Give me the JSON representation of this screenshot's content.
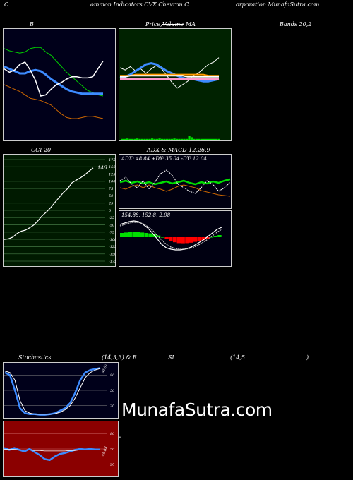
{
  "header": {
    "seg1": "C",
    "seg2": "ommon  Indicators CVX  Chevron  C",
    "seg3": "orporation  MunafaSutra.com"
  },
  "titles": {
    "bollinger": "B",
    "price": "Price,",
    "volume": "Volume",
    "ma": "MA",
    "bands": "Bands 20,2",
    "cci": "CCI 20",
    "adx_macd": "ADX  & MACD 12,26,9",
    "stoch": "Stochastics",
    "stoch_params": "(14,3,3) & R",
    "rsi": "SI",
    "rsi_params": "(14,5",
    "rsi_close": ")"
  },
  "watermark": "MunafaSutra.com",
  "colors": {
    "bollinger_bg": "#00001a",
    "price_bg": "#002200",
    "cci_bg": "#001a00",
    "adx_bg": "#000011",
    "stoch_bg": "#00001a",
    "rsi_bg": "#8b0000",
    "blue": "#3d8bff",
    "green": "#00dd00",
    "orange": "#cc6600",
    "red": "#ff0000",
    "grid": "#3a6a3a"
  },
  "chart_data": [
    {
      "id": "bollinger",
      "type": "line",
      "series": [
        {
          "role": "upper",
          "color": "#00cc00",
          "values": [
            82,
            80,
            79,
            78,
            79,
            82,
            83,
            83,
            79,
            76,
            71,
            66,
            61,
            57,
            53,
            49,
            45,
            43,
            41,
            40
          ]
        },
        {
          "role": "middle",
          "color": "#3d8bff",
          "values": [
            66,
            64,
            62,
            60,
            60,
            62,
            63,
            62,
            59,
            55,
            52,
            49,
            46,
            44,
            43,
            42,
            42,
            42,
            42,
            42
          ]
        },
        {
          "role": "lower",
          "color": "#cc6600",
          "values": [
            50,
            48,
            46,
            44,
            41,
            38,
            37,
            36,
            34,
            32,
            28,
            24,
            21,
            20,
            20,
            21,
            22,
            22,
            21,
            20
          ]
        },
        {
          "role": "price",
          "color": "#ffffff",
          "values": [
            64,
            61,
            63,
            68,
            70,
            63,
            54,
            40,
            41,
            46,
            50,
            52,
            55,
            57,
            57,
            56,
            56,
            57,
            64,
            71
          ]
        }
      ]
    },
    {
      "id": "price_volume_ma",
      "type": "line",
      "series": [
        {
          "role": "price",
          "color": "#ffffff",
          "values": [
            65,
            63,
            66,
            62,
            64,
            60,
            64,
            67,
            64,
            58,
            52,
            47,
            50,
            53,
            58,
            60,
            64,
            68,
            70,
            74
          ]
        },
        {
          "role": "ma-blue",
          "color": "#3d8bff",
          "values": [
            56,
            57,
            59,
            62,
            65,
            68,
            69,
            68,
            65,
            62,
            60,
            58,
            56,
            55,
            55,
            54,
            53,
            53,
            54,
            55
          ]
        },
        {
          "role": "ma-orange",
          "color": "#ff9900",
          "values": [
            58,
            58,
            58,
            59,
            59,
            59,
            59,
            59,
            59,
            59,
            59,
            59,
            59,
            59,
            59,
            59,
            59,
            58,
            58,
            58
          ]
        },
        {
          "role": "ma-white",
          "color": "#ffffff",
          "values": [
            57,
            57,
            58,
            58,
            58,
            58,
            58,
            58,
            58,
            58,
            58,
            58,
            58,
            57,
            57,
            57,
            57,
            57,
            57,
            57
          ]
        },
        {
          "role": "ma-pink",
          "color": "#ff99cc",
          "values": [
            55,
            55,
            55,
            55,
            55,
            55,
            55,
            55,
            55,
            55,
            55,
            55,
            55,
            55,
            55,
            55,
            55,
            55,
            55,
            55
          ]
        }
      ],
      "volume": [
        0.2,
        0.2,
        0.3,
        0.2,
        0.2,
        0.2,
        0.3,
        0.2,
        0.2,
        0.2,
        0.2,
        0.2,
        0.3,
        0.2,
        0.2,
        0.3,
        0.2,
        0.2,
        0.2,
        0.2,
        0.2,
        0.3,
        0.2,
        0.2,
        0.2,
        0.2,
        0.2,
        1.0,
        0.6,
        0.2,
        0.2,
        0.2,
        0.2,
        0.2,
        0.2,
        0.2,
        0.2,
        0.2,
        0.2,
        0.2
      ]
    },
    {
      "id": "cci",
      "type": "line",
      "ylim": [
        -175,
        175
      ],
      "ticks": [
        "175",
        "150",
        "125",
        "100",
        "75",
        "50",
        "25",
        "0",
        "-25",
        "-50",
        "-75",
        "-100",
        "-125",
        "-150",
        "-175"
      ],
      "last_label": "146",
      "values": [
        -100,
        -98,
        -92,
        -80,
        -72,
        -68,
        -60,
        -50,
        -35,
        -18,
        -5,
        10,
        28,
        45,
        62,
        75,
        95,
        104,
        112,
        122,
        135,
        146
      ]
    },
    {
      "id": "adx",
      "type": "line",
      "label": "ADX: 48.84  +DY: 35.04  -DY: 12.04",
      "series": [
        {
          "role": "adx",
          "color": "#00dd00",
          "values": [
            38,
            40,
            37,
            39,
            36,
            38,
            35,
            37,
            39,
            36,
            38,
            40,
            37,
            35,
            38,
            36,
            39,
            37,
            40,
            42
          ]
        },
        {
          "role": "plus-di",
          "color": "#ffffff",
          "values": [
            40,
            45,
            35,
            30,
            40,
            28,
            38,
            50,
            55,
            48,
            35,
            30,
            25,
            22,
            30,
            40,
            35,
            25,
            30,
            38
          ]
        },
        {
          "role": "minus-di",
          "color": "#cc6600",
          "values": [
            30,
            28,
            32,
            34,
            30,
            34,
            30,
            28,
            25,
            28,
            32,
            34,
            32,
            30,
            26,
            24,
            22,
            20,
            19,
            18
          ]
        }
      ]
    },
    {
      "id": "macd",
      "type": "bar",
      "label": "154.88,  152.8,  2.08",
      "histogram": [
        0.5,
        0.55,
        0.6,
        0.62,
        0.6,
        0.55,
        0.5,
        0.45,
        0.35,
        0.2,
        0,
        -0.25,
        -0.45,
        -0.6,
        -0.7,
        -0.72,
        -0.7,
        -0.65,
        -0.55,
        -0.45,
        -0.35,
        -0.2,
        0,
        0.15,
        0.25
      ],
      "series": [
        {
          "role": "macd",
          "color": "#ffffff",
          "values": [
            60,
            62,
            64,
            65,
            64,
            60,
            55,
            48,
            40,
            32,
            27,
            25,
            24,
            24,
            25,
            27,
            30,
            34,
            38,
            43,
            48,
            53,
            56
          ]
        },
        {
          "role": "signal",
          "color": "#cccccc",
          "values": [
            58,
            60,
            62,
            63,
            63,
            61,
            57,
            52,
            45,
            38,
            32,
            28,
            26,
            25,
            25,
            26,
            28,
            31,
            35,
            39,
            44,
            49,
            53
          ]
        }
      ]
    },
    {
      "id": "stochastics",
      "type": "line",
      "ylim": [
        0,
        100
      ],
      "ticks": [
        "80",
        "50",
        "20"
      ],
      "last_label": "93.92",
      "series": [
        {
          "role": "k",
          "color": "#3d8bff",
          "values": [
            85,
            80,
            50,
            15,
            5,
            3,
            3,
            2,
            2,
            3,
            5,
            10,
            15,
            25,
            45,
            70,
            85,
            90,
            92,
            94
          ]
        },
        {
          "role": "d",
          "color": "#ffffff",
          "values": [
            88,
            85,
            70,
            30,
            10,
            5,
            3,
            3,
            3,
            3,
            4,
            7,
            12,
            20,
            35,
            55,
            75,
            85,
            90,
            93
          ]
        }
      ]
    },
    {
      "id": "rsi",
      "type": "line",
      "ylim": [
        0,
        100
      ],
      "ticks": [
        "80",
        "50",
        "20"
      ],
      "last_label": "48.83",
      "series": [
        {
          "role": "rsi",
          "color": "#3d8bff",
          "values": [
            52,
            48,
            52,
            48,
            45,
            50,
            44,
            38,
            30,
            28,
            35,
            40,
            42,
            45,
            48,
            50,
            49,
            50,
            49,
            49
          ]
        },
        {
          "role": "ref",
          "color": "#ffffff",
          "values": [
            49,
            49,
            49,
            48,
            48,
            48,
            47,
            47,
            46,
            46,
            46,
            46,
            46,
            47,
            47,
            48,
            48,
            48,
            48,
            48
          ]
        }
      ]
    }
  ]
}
